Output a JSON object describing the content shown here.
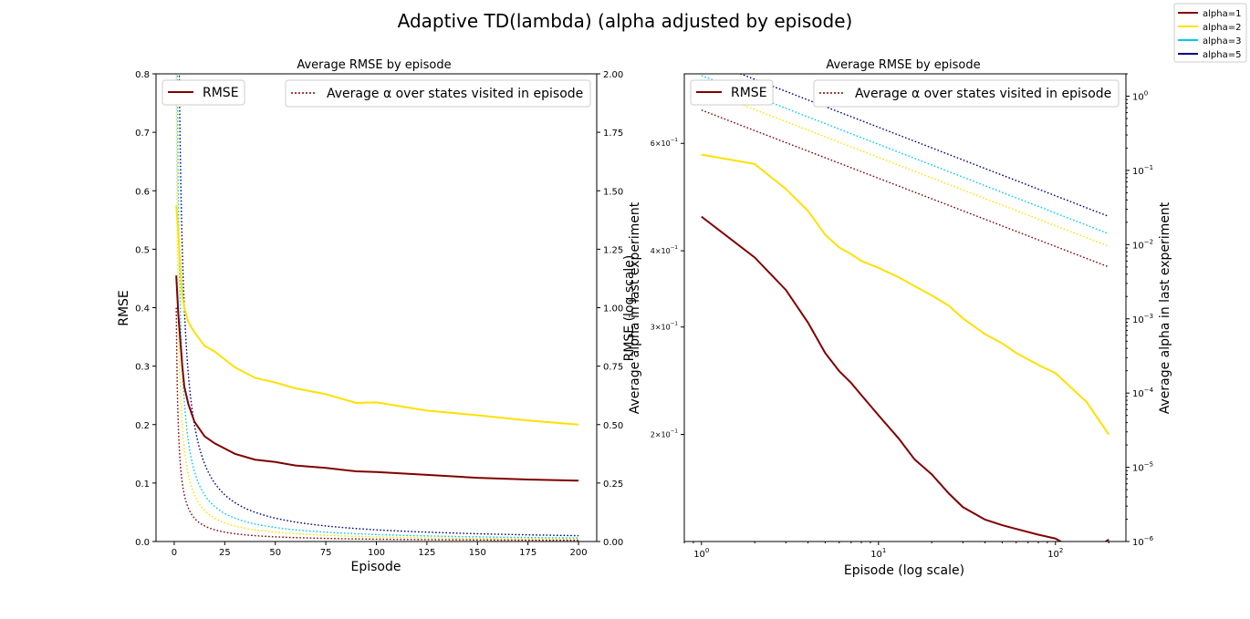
{
  "suptitle": "Adaptive TD(lambda) (alpha adjusted by episode)",
  "figure_legend": [
    {
      "label": "alpha=1",
      "color": "#800000"
    },
    {
      "label": "alpha=2",
      "color": "#ffe000"
    },
    {
      "label": "alpha=3",
      "color": "#00c8f0"
    },
    {
      "label": "alpha=5",
      "color": "#000080"
    }
  ],
  "chart_data": [
    {
      "type": "line",
      "title": "Average RMSE by episode",
      "xlabel": "Episode",
      "ylabel": "RMSE",
      "y2label": "Average alpha in last experiment",
      "xlim": [
        -9,
        209
      ],
      "ylim": [
        0,
        0.8
      ],
      "y2lim": [
        0,
        2.0
      ],
      "xticks": [
        0,
        25,
        50,
        75,
        100,
        125,
        150,
        175,
        200
      ],
      "yticks": [
        "0.0",
        "0.1",
        "0.2",
        "0.3",
        "0.4",
        "0.5",
        "0.6",
        "0.7",
        "0.8"
      ],
      "y2ticks": [
        "0.00",
        "0.25",
        "0.50",
        "0.75",
        "1.00",
        "1.25",
        "1.50",
        "1.75",
        "2.00"
      ],
      "legend_left": {
        "label": "RMSE",
        "color": "#800000",
        "style": "solid",
        "placement": "upper-left"
      },
      "legend_right": {
        "label": "Average α over states visited in episode",
        "color": "#800000",
        "style": "dotted",
        "placement": "upper-right"
      },
      "rmse_series": [
        {
          "name": "alpha=1",
          "color": "#800000",
          "x": [
            1,
            2,
            3,
            4,
            5,
            7,
            10,
            15,
            20,
            30,
            40,
            50,
            60,
            75,
            90,
            100,
            125,
            150,
            175,
            200
          ],
          "y": [
            0.455,
            0.39,
            0.345,
            0.3,
            0.265,
            0.235,
            0.205,
            0.18,
            0.168,
            0.15,
            0.14,
            0.136,
            0.13,
            0.126,
            0.12,
            0.119,
            0.114,
            0.109,
            0.106,
            0.104
          ]
        },
        {
          "name": "alpha=2",
          "color": "#ffe000",
          "x": [
            1,
            2,
            3,
            4,
            5,
            7,
            10,
            15,
            20,
            30,
            40,
            50,
            60,
            75,
            90,
            100,
            125,
            150,
            175,
            200
          ],
          "y": [
            0.575,
            0.53,
            0.47,
            0.42,
            0.4,
            0.375,
            0.358,
            0.335,
            0.325,
            0.298,
            0.28,
            0.272,
            0.262,
            0.252,
            0.237,
            0.238,
            0.224,
            0.216,
            0.207,
            0.2
          ]
        }
      ],
      "alpha_series": [
        {
          "name": "alpha=1",
          "color": "#800000",
          "numerator": 1
        },
        {
          "name": "alpha=2",
          "color": "#ffe000",
          "numerator": 2
        },
        {
          "name": "alpha=3",
          "color": "#00c8f0",
          "numerator": 3
        },
        {
          "name": "alpha=5",
          "color": "#000080",
          "numerator": 5
        }
      ]
    },
    {
      "type": "line",
      "title": "Average RMSE by episode",
      "xlabel": "Episode (log scale)",
      "ylabel": "RMSE (log scale)",
      "y2label": "Average alpha in last experiment",
      "xscale": "log",
      "yscale": "log",
      "y2scale": "log",
      "xlim": [
        0.8,
        250
      ],
      "ylim": [
        0.1335,
        0.78
      ],
      "y2lim": [
        1e-06,
        2
      ],
      "xticks": [
        {
          "v": 1,
          "label": "10",
          "exp": "0"
        },
        {
          "v": 10,
          "label": "10",
          "exp": "1"
        },
        {
          "v": 100,
          "label": "10",
          "exp": "2"
        }
      ],
      "yticks": [
        {
          "v": 0.2,
          "label": "2×10",
          "exp": "−1"
        },
        {
          "v": 0.3,
          "label": "3×10",
          "exp": "−1"
        },
        {
          "v": 0.4,
          "label": "4×10",
          "exp": "−1"
        },
        {
          "v": 0.6,
          "label": "6×10",
          "exp": "−1"
        }
      ],
      "y2ticks": [
        {
          "v": 1e-06,
          "label": "10",
          "exp": "−6"
        },
        {
          "v": 1e-05,
          "label": "10",
          "exp": "−5"
        },
        {
          "v": 0.0001,
          "label": "10",
          "exp": "−4"
        },
        {
          "v": 0.001,
          "label": "10",
          "exp": "−3"
        },
        {
          "v": 0.01,
          "label": "10",
          "exp": "−2"
        },
        {
          "v": 0.1,
          "label": "10",
          "exp": "−1"
        },
        {
          "v": 1,
          "label": "10",
          "exp": "0"
        }
      ],
      "legend_left": {
        "label": "RMSE",
        "color": "#800000",
        "style": "solid",
        "placement": "upper-left"
      },
      "legend_right": {
        "label": "Average α over states visited in episode",
        "color": "#800000",
        "style": "dotted",
        "placement": "upper-right"
      },
      "rmse_series": [
        {
          "name": "alpha=1",
          "color": "#800000",
          "x": [
            1,
            2,
            3,
            4,
            5,
            6,
            7,
            8,
            10,
            13,
            16,
            20,
            25,
            30,
            40,
            50,
            60,
            80,
            100,
            120,
            150,
            200
          ],
          "y": [
            0.455,
            0.39,
            0.345,
            0.305,
            0.272,
            0.254,
            0.243,
            0.232,
            0.215,
            0.197,
            0.182,
            0.172,
            0.16,
            0.152,
            0.145,
            0.142,
            0.14,
            0.137,
            0.135,
            0.131,
            0.127,
            0.1345
          ]
        },
        {
          "name": "alpha=2",
          "color": "#ffe000",
          "x": [
            1,
            2,
            3,
            4,
            5,
            6,
            7,
            8,
            10,
            13,
            16,
            20,
            25,
            30,
            40,
            50,
            60,
            80,
            100,
            120,
            150,
            200
          ],
          "y": [
            0.575,
            0.555,
            0.505,
            0.465,
            0.425,
            0.405,
            0.395,
            0.385,
            0.375,
            0.362,
            0.35,
            0.338,
            0.325,
            0.31,
            0.292,
            0.282,
            0.272,
            0.26,
            0.252,
            0.24,
            0.226,
            0.2
          ]
        }
      ],
      "alpha_series": [
        {
          "name": "alpha=1",
          "color": "#800000",
          "y_at_1": 0.65,
          "y_at_200": 0.005
        },
        {
          "name": "alpha=2",
          "color": "#ffe000",
          "y_at_1": 1.25,
          "y_at_200": 0.0095
        },
        {
          "name": "alpha=3",
          "color": "#00c8f0",
          "y_at_1": 1.9,
          "y_at_200": 0.014
        },
        {
          "name": "alpha=5",
          "color": "#000080",
          "y_at_1": 3.2,
          "y_at_200": 0.024
        }
      ]
    }
  ]
}
